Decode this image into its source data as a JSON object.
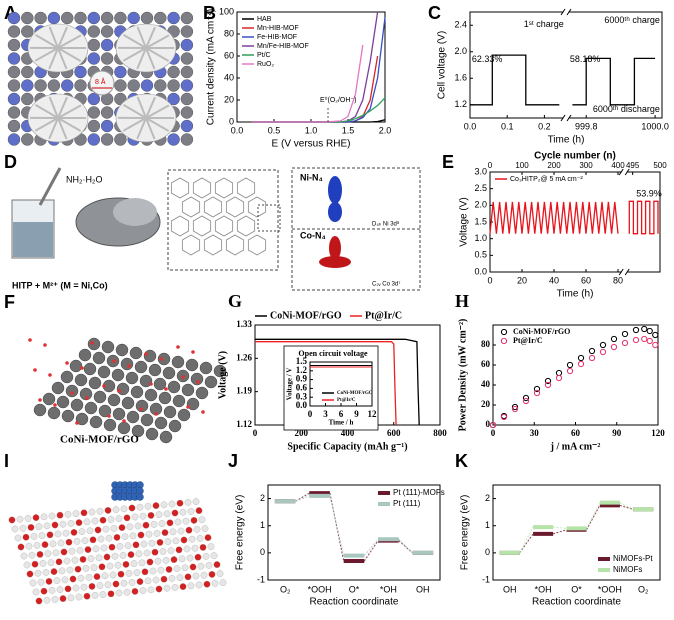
{
  "panels": [
    {
      "label": "A",
      "texts": [
        "8 Å"
      ]
    },
    {
      "label": "D",
      "texts": [
        "NH₂·H₂O",
        "HITP + M²⁺ (M = Ni,Co)",
        "Ni-N₄",
        "Co-N₄",
        "D₄ₕ Ni 3d⁸",
        "C₂ᵥ Co 3d⁷"
      ]
    },
    {
      "label": "F",
      "texts": [
        "CoNi-MOF/rGO"
      ]
    },
    {
      "label": "I"
    }
  ],
  "chart_data": [
    {
      "panel": "B",
      "type": "line",
      "xlabel": "E (V versus RHE)",
      "ylabel": "Current density (mA cm⁻²)",
      "x": [
        0.2,
        0.6,
        1.0,
        1.2,
        1.4,
        1.5,
        1.6,
        1.7,
        1.8,
        1.9,
        2.0
      ],
      "xlim": [
        0,
        2
      ],
      "xticks": [
        {
          "value": 0,
          "label": "0.0"
        },
        0.5,
        {
          "value": 1,
          "label": "1.0"
        },
        1.5,
        {
          "value": 2,
          "label": "2.0"
        }
      ],
      "ylim": [
        0,
        100
      ],
      "yticks": [
        0,
        20,
        40,
        60,
        80,
        100
      ],
      "legend": "upper left",
      "series": [
        {
          "name": "HAB",
          "color": "#000000",
          "values": [
            0,
            0,
            0,
            0,
            0,
            0,
            0,
            0,
            0,
            0.5,
            2
          ]
        },
        {
          "name": "Mn-HIB-MOF",
          "color": "#d62728",
          "values": [
            0,
            0,
            0,
            0,
            0,
            0,
            1,
            5,
            20,
            60,
            null
          ]
        },
        {
          "name": "Fe-HIB-MOF",
          "color": "#3a4fc4",
          "values": [
            0,
            0,
            0,
            0,
            0,
            0,
            1,
            4,
            12,
            40,
            95
          ]
        },
        {
          "name": "Mn/Fe-HIB-MOF",
          "color": "#7b3f9e",
          "values": [
            0,
            0,
            0,
            0,
            0,
            1,
            5,
            20,
            55,
            100,
            null
          ]
        },
        {
          "name": "Pt/C",
          "color": "#2ca05a",
          "values": [
            0,
            0,
            0,
            0,
            0,
            1,
            3,
            6,
            10,
            15,
            22
          ]
        },
        {
          "name": "RuO₂",
          "color": "#e377c2",
          "values": [
            0,
            0,
            0,
            0,
            1,
            5,
            25,
            70,
            null,
            null,
            null
          ]
        }
      ],
      "reference_lines": [
        {
          "x": 1.23,
          "label": "E⁰(O₂/OH⁻)"
        }
      ]
    },
    {
      "panel": "C",
      "type": "line",
      "xlabel": "Time (h)",
      "ylabel": "Cell voltage (V)",
      "x": [
        0,
        0.06,
        0.06,
        0.15,
        0.15,
        0.24,
        999.76,
        999.8,
        999.8,
        999.87,
        999.87,
        999.94,
        999.94,
        1000.0
      ],
      "values": [
        1.2,
        1.2,
        1.95,
        1.95,
        1.2,
        1.2,
        1.2,
        1.2,
        1.9,
        1.9,
        1.2,
        1.2,
        1.9,
        1.9
      ],
      "color": "#000000",
      "xlim": [
        [
          0,
          0.25
        ],
        [
          999.75,
          1000.02
        ]
      ],
      "xticks": [
        {
          "value": 0,
          "label": "0.0"
        },
        0.1,
        0.2,
        999.8,
        {
          "value": 1000,
          "label": "1000.0"
        }
      ],
      "ylim": [
        1.0,
        2.6
      ],
      "yticks": [
        1.2,
        1.6,
        {
          "value": 2,
          "label": "2.0"
        },
        2.4
      ],
      "annotations": [
        "1ˢᵗ charge",
        "62.33%",
        "6000ᵗʰ charge",
        "58.18%",
        "6000ᵗʰ discharge"
      ]
    },
    {
      "panel": "E",
      "type": "line",
      "xlabel": "Time (h)",
      "x2label": "Cycle number (n)",
      "ylabel": "Voltage (V)",
      "x": [
        0,
        2,
        4,
        6,
        8,
        10,
        12,
        14,
        16,
        18,
        20,
        22,
        24,
        26,
        28,
        30,
        32,
        34,
        36,
        38,
        40,
        42,
        44,
        46,
        48,
        50,
        52,
        54,
        56,
        58,
        60,
        62,
        64,
        66,
        68,
        70,
        72,
        74,
        76,
        78,
        80,
        83,
        83,
        85,
        85,
        87,
        87,
        89,
        89,
        91,
        91,
        93,
        93,
        95,
        95,
        97,
        97
      ],
      "series": [
        {
          "name": "Co₃HITP₂@ 5 mA cm⁻²",
          "color": "#e8141c",
          "values": [
            1.15,
            2.1,
            1.15,
            2.1,
            1.15,
            2.1,
            1.15,
            2.1,
            1.15,
            2.1,
            1.15,
            2.1,
            1.15,
            2.1,
            1.15,
            2.1,
            1.15,
            2.1,
            1.15,
            2.1,
            1.15,
            2.1,
            1.15,
            2.1,
            1.15,
            2.1,
            1.15,
            2.1,
            1.15,
            2.1,
            1.15,
            2.1,
            1.15,
            2.1,
            1.15,
            2.1,
            1.15,
            2.1,
            1.15,
            2.1,
            1.15,
            1.15,
            2.12,
            2.12,
            1.15,
            1.15,
            2.12,
            2.12,
            1.15,
            1.15,
            2.12,
            2.12,
            1.15,
            1.15,
            2.12,
            2.12,
            1.15
          ]
        }
      ],
      "xlim": [
        [
          0,
          82
        ],
        [
          82,
          98
        ]
      ],
      "xticks": [
        0,
        20,
        40,
        60,
        80
      ],
      "x2lim": [
        [
          0,
          410
        ],
        [
          494,
          500
        ]
      ],
      "x2ticks": [
        0,
        100,
        200,
        300,
        400,
        495,
        500
      ],
      "ylim": [
        0,
        3
      ],
      "yticks": [
        {
          "value": 0,
          "label": "0.0"
        },
        0.5,
        {
          "value": 1,
          "label": "1.0"
        },
        1.5,
        {
          "value": 2,
          "label": "2.0"
        },
        2.5,
        {
          "value": 3,
          "label": "3.0"
        }
      ],
      "legend": "upper left",
      "annotations": [
        "53.9%"
      ]
    },
    {
      "panel": "G",
      "type": "line",
      "xlabel": "Specific Capacity (mAh g⁻¹)",
      "ylabel": "Voltage (V)",
      "xlim": [
        0,
        800
      ],
      "xticks": [
        0,
        200,
        400,
        600,
        800
      ],
      "ylim": [
        1.12,
        1.33
      ],
      "yticks": [
        1.12,
        1.19,
        1.26,
        1.33
      ],
      "legend": "above",
      "series": [
        {
          "name": "CoNi-MOF/rGO",
          "color": "#000000",
          "x": [
            0,
            100,
            300,
            500,
            650,
            700,
            705,
            710
          ],
          "values": [
            1.3,
            1.3,
            1.3,
            1.3,
            1.3,
            1.295,
            1.2,
            1.12
          ]
        },
        {
          "name": "Pt@Ir/C",
          "color": "#ee2020",
          "x": [
            0,
            100,
            300,
            500,
            590,
            600,
            605,
            610
          ],
          "values": [
            1.295,
            1.295,
            1.295,
            1.295,
            1.295,
            1.29,
            1.2,
            1.12
          ]
        }
      ]
    },
    {
      "type": "line",
      "title": "Open circuit voltage",
      "xlabel": "Time / h",
      "ylabel": "Voltage / V",
      "xlim": [
        0,
        12
      ],
      "xticks": [
        0,
        3,
        6,
        9,
        12
      ],
      "ylim": [
        0,
        1.5
      ],
      "yticks": [
        {
          "value": 0,
          "label": "0.0"
        },
        0.3,
        0.6,
        0.9,
        1.2,
        1.5
      ],
      "legend": "lower right",
      "series": [
        {
          "name": "CoNi-MOF/rGO",
          "color": "#000000",
          "x": [
            0,
            12
          ],
          "values": [
            1.38,
            1.38
          ]
        },
        {
          "name": "Pt@Ir/C",
          "color": "#ee2020",
          "x": [
            0,
            12
          ],
          "values": [
            1.33,
            1.33
          ]
        }
      ]
    },
    {
      "panel": "H",
      "type": "scatter",
      "xlabel": "j / mA cm⁻²",
      "ylabel": "Power Density (mW cm⁻²)",
      "x": [
        0,
        8,
        16,
        24,
        32,
        40,
        48,
        56,
        64,
        72,
        80,
        88,
        96,
        104,
        110,
        114,
        118
      ],
      "xlim": [
        0,
        120
      ],
      "xticks": [
        0,
        30,
        60,
        90,
        120
      ],
      "ylim": [
        0,
        100
      ],
      "yticks": [
        0,
        20,
        40,
        60,
        80
      ],
      "legend": "upper left",
      "series": [
        {
          "name": "CoNi-MOF/rGO",
          "color": "#000000",
          "values": [
            0,
            9,
            18,
            27,
            36,
            44,
            52,
            60,
            67,
            74,
            80,
            86,
            91,
            95,
            96,
            94,
            90
          ]
        },
        {
          "name": "Pt@Ir/C",
          "color": "#e8306a",
          "values": [
            0,
            8,
            16,
            24,
            32,
            40,
            47,
            54,
            61,
            67,
            73,
            78,
            82,
            85,
            86,
            84,
            80
          ]
        }
      ]
    },
    {
      "panel": "J",
      "type": "step",
      "xlabel": "Reaction coordinate",
      "ylabel": "Free energy (eV)",
      "categories": [
        "O₂",
        "*OOH",
        "O*",
        "*OH",
        "OH"
      ],
      "ylim": [
        -1,
        2.5
      ],
      "yticks": [
        -1,
        0,
        1,
        2
      ],
      "legend": "upper right",
      "series": [
        {
          "name": "Pt (111)-MOFs",
          "color": "#6b1a2e",
          "values": [
            1.9,
            2.2,
            -0.3,
            0.45,
            0
          ]
        },
        {
          "name": "Pt (111)",
          "color": "#a9c6bf",
          "values": [
            1.9,
            2.1,
            -0.1,
            0.5,
            0
          ]
        }
      ]
    },
    {
      "panel": "K",
      "type": "step",
      "xlabel": "Reaction coordinate",
      "ylabel": "Free energy (eV)",
      "categories": [
        "OH",
        "*OH",
        "O*",
        "*OOH",
        "O₂"
      ],
      "ylim": [
        -1,
        2.5
      ],
      "yticks": [
        -1,
        0,
        1,
        2
      ],
      "legend": "lower right",
      "series": [
        {
          "name": "NiMOFs-Pt",
          "color": "#6b1a2e",
          "values": [
            0,
            0.7,
            0.85,
            1.75,
            1.6
          ]
        },
        {
          "name": "NiMOFs",
          "color": "#b5e3a8",
          "values": [
            0,
            0.95,
            0.9,
            1.85,
            1.6
          ]
        }
      ]
    }
  ]
}
